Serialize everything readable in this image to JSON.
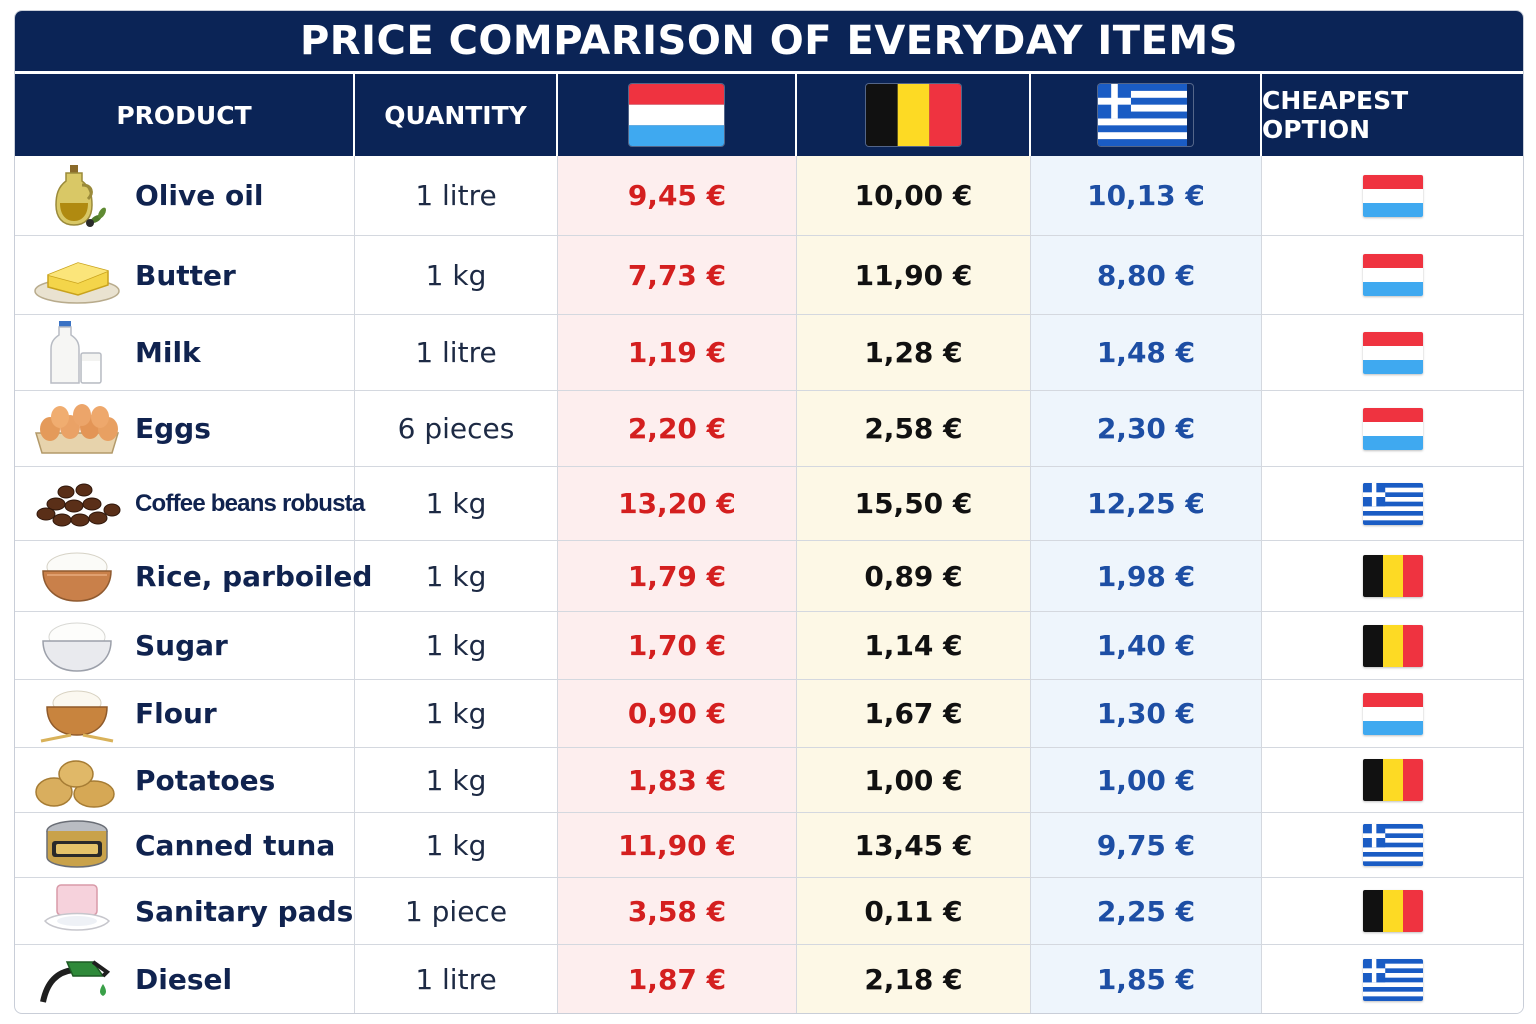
{
  "title": "PRICE COMPARISON OF EVERYDAY ITEMS",
  "headers": {
    "product": "PRODUCT",
    "quantity": "QUANTITY",
    "cheapest": "CHEAPEST OPTION"
  },
  "country_columns": [
    {
      "flag": "luxembourg-flag",
      "price_color": "#d41f1f",
      "bg": "#fdeeee"
    },
    {
      "flag": "belgium-flag",
      "price_color": "#111111",
      "bg": "#fdf8e6"
    },
    {
      "flag": "greece-flag",
      "price_color": "#1d4ea4",
      "bg": "#eef5fc"
    }
  ],
  "colors": {
    "header_bg": "#0b2456",
    "text_dark": "#10234f"
  },
  "rows": [
    {
      "product": "Olive oil",
      "icon": "olive-oil-icon",
      "quantity": "1 litre",
      "lu": "9,45 €",
      "be": "10,00 €",
      "gr": "10,13 €",
      "cheapest": "lu"
    },
    {
      "product": "Butter",
      "icon": "butter-icon",
      "quantity": "1 kg",
      "lu": "7,73 €",
      "be": "11,90 €",
      "gr": "8,80 €",
      "cheapest": "lu"
    },
    {
      "product": "Milk",
      "icon": "milk-icon",
      "quantity": "1 litre",
      "lu": "1,19 €",
      "be": "1,28 €",
      "gr": "1,48 €",
      "cheapest": "lu"
    },
    {
      "product": "Eggs",
      "icon": "eggs-icon",
      "quantity": "6 pieces",
      "lu": "2,20 €",
      "be": "2,58 €",
      "gr": "2,30 €",
      "cheapest": "lu"
    },
    {
      "product": "Coffee beans robusta",
      "icon": "coffee-beans-icon",
      "quantity": "1 kg",
      "lu": "13,20 €",
      "be": "15,50 €",
      "gr": "12,25 €",
      "cheapest": "gr"
    },
    {
      "product": "Rice, parboiled",
      "icon": "rice-icon",
      "quantity": "1 kg",
      "lu": "1,79 €",
      "be": "0,89 €",
      "gr": "1,98 €",
      "cheapest": "be"
    },
    {
      "product": "Sugar",
      "icon": "sugar-icon",
      "quantity": "1 kg",
      "lu": "1,70 €",
      "be": "1,14 €",
      "gr": "1,40 €",
      "cheapest": "be"
    },
    {
      "product": "Flour",
      "icon": "flour-icon",
      "quantity": "1 kg",
      "lu": "0,90 €",
      "be": "1,67 €",
      "gr": "1,30 €",
      "cheapest": "lu"
    },
    {
      "product": "Potatoes",
      "icon": "potatoes-icon",
      "quantity": "1 kg",
      "lu": "1,83 €",
      "be": "1,00 €",
      "gr": "1,00 €",
      "cheapest": "be"
    },
    {
      "product": "Canned tuna",
      "icon": "canned-tuna-icon",
      "quantity": "1 kg",
      "lu": "11,90 €",
      "be": "13,45 €",
      "gr": "9,75 €",
      "cheapest": "gr"
    },
    {
      "product": "Sanitary pads",
      "icon": "sanitary-pads-icon",
      "quantity": "1 piece",
      "lu": "3,58 €",
      "be": "0,11 €",
      "gr": "2,25 €",
      "cheapest": "be"
    },
    {
      "product": "Diesel",
      "icon": "fuel-nozzle-icon",
      "quantity": "1 litre",
      "lu": "1,87 €",
      "be": "2,18 €",
      "gr": "1,85 €",
      "cheapest": "gr"
    }
  ],
  "chart_data": {
    "type": "table",
    "title": "PRICE COMPARISON OF EVERYDAY ITEMS",
    "columns": [
      "PRODUCT",
      "QUANTITY",
      "Luxembourg (flag)",
      "Belgium (flag)",
      "Greece (flag)",
      "CHEAPEST OPTION"
    ],
    "rows": [
      [
        "Olive oil",
        "1 litre",
        9.45,
        10.0,
        10.13,
        "Luxembourg"
      ],
      [
        "Butter",
        "1 kg",
        7.73,
        11.9,
        8.8,
        "Luxembourg"
      ],
      [
        "Milk",
        "1 litre",
        1.19,
        1.28,
        1.48,
        "Luxembourg"
      ],
      [
        "Eggs",
        "6 pieces",
        2.2,
        2.58,
        2.3,
        "Luxembourg"
      ],
      [
        "Coffee beans robusta",
        "1 kg",
        13.2,
        15.5,
        12.25,
        "Greece"
      ],
      [
        "Rice, parboiled",
        "1 kg",
        1.79,
        0.89,
        1.98,
        "Belgium"
      ],
      [
        "Sugar",
        "1 kg",
        1.7,
        1.14,
        1.4,
        "Belgium"
      ],
      [
        "Flour",
        "1 kg",
        0.9,
        1.67,
        1.3,
        "Luxembourg"
      ],
      [
        "Potatoes",
        "1 kg",
        1.83,
        1.0,
        1.0,
        "Belgium"
      ],
      [
        "Canned tuna",
        "1 kg",
        11.9,
        13.45,
        9.75,
        "Greece"
      ],
      [
        "Sanitary pads",
        "1 piece",
        3.58,
        0.11,
        2.25,
        "Belgium"
      ],
      [
        "Diesel",
        "1 litre",
        1.87,
        2.18,
        1.85,
        "Greece"
      ]
    ]
  }
}
